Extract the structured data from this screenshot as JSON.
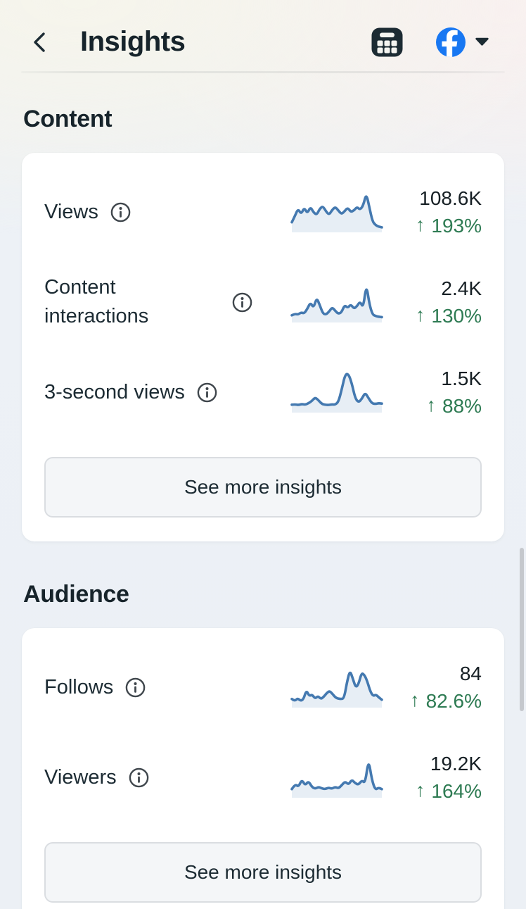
{
  "header": {
    "title": "Insights"
  },
  "glyphs": {
    "up_arrow": "↑"
  },
  "colors": {
    "line_blue": "#4479b0",
    "fill_blue": "rgba(70,122,175,0.13)",
    "positive_green": "#2e7b53",
    "facebook_blue": "#1877F2",
    "icon_dark": "#1c2b33"
  },
  "sections": [
    {
      "title": "Content",
      "see_more_label": "See more insights",
      "metrics": [
        {
          "label": "Views",
          "value": "108.6K",
          "change": "193%",
          "direction": "up",
          "spark": [
            18,
            35,
            55,
            40,
            58,
            42,
            60,
            45,
            38,
            55,
            62,
            48,
            38,
            52,
            60,
            50,
            40,
            48,
            58,
            46,
            50,
            60,
            52,
            64,
            97,
            58,
            20,
            10,
            6,
            4
          ]
        },
        {
          "label": "Content interactions",
          "value": "2.4K",
          "change": "130%",
          "direction": "up",
          "spark": [
            10,
            14,
            12,
            18,
            15,
            28,
            45,
            30,
            58,
            38,
            15,
            12,
            20,
            32,
            22,
            14,
            18,
            38,
            30,
            40,
            28,
            35,
            48,
            30,
            95,
            40,
            12,
            8,
            6,
            5
          ]
        },
        {
          "label": "3-second views",
          "value": "1.5K",
          "change": "88%",
          "direction": "up",
          "spark": [
            12,
            13,
            11,
            14,
            12,
            16,
            22,
            32,
            24,
            14,
            12,
            11,
            13,
            12,
            20,
            55,
            95,
            96,
            70,
            30,
            18,
            28,
            45,
            30,
            16,
            14,
            16,
            15
          ]
        }
      ]
    },
    {
      "title": "Audience",
      "see_more_label": "See more insights",
      "metrics": [
        {
          "label": "Follows",
          "value": "84",
          "change": "82.6%",
          "direction": "up",
          "spark": [
            14,
            8,
            16,
            9,
            13,
            38,
            22,
            26,
            15,
            22,
            14,
            20,
            30,
            36,
            28,
            18,
            15,
            14,
            16,
            60,
            92,
            70,
            45,
            55,
            85,
            80,
            62,
            35,
            22,
            26,
            18,
            12
          ]
        },
        {
          "label": "Viewers",
          "value": "19.2K",
          "change": "164%",
          "direction": "up",
          "spark": [
            14,
            28,
            20,
            40,
            24,
            36,
            20,
            15,
            20,
            16,
            14,
            18,
            15,
            20,
            16,
            25,
            35,
            26,
            40,
            30,
            26,
            38,
            30,
            96,
            40,
            12,
            18,
            14
          ]
        }
      ]
    }
  ]
}
